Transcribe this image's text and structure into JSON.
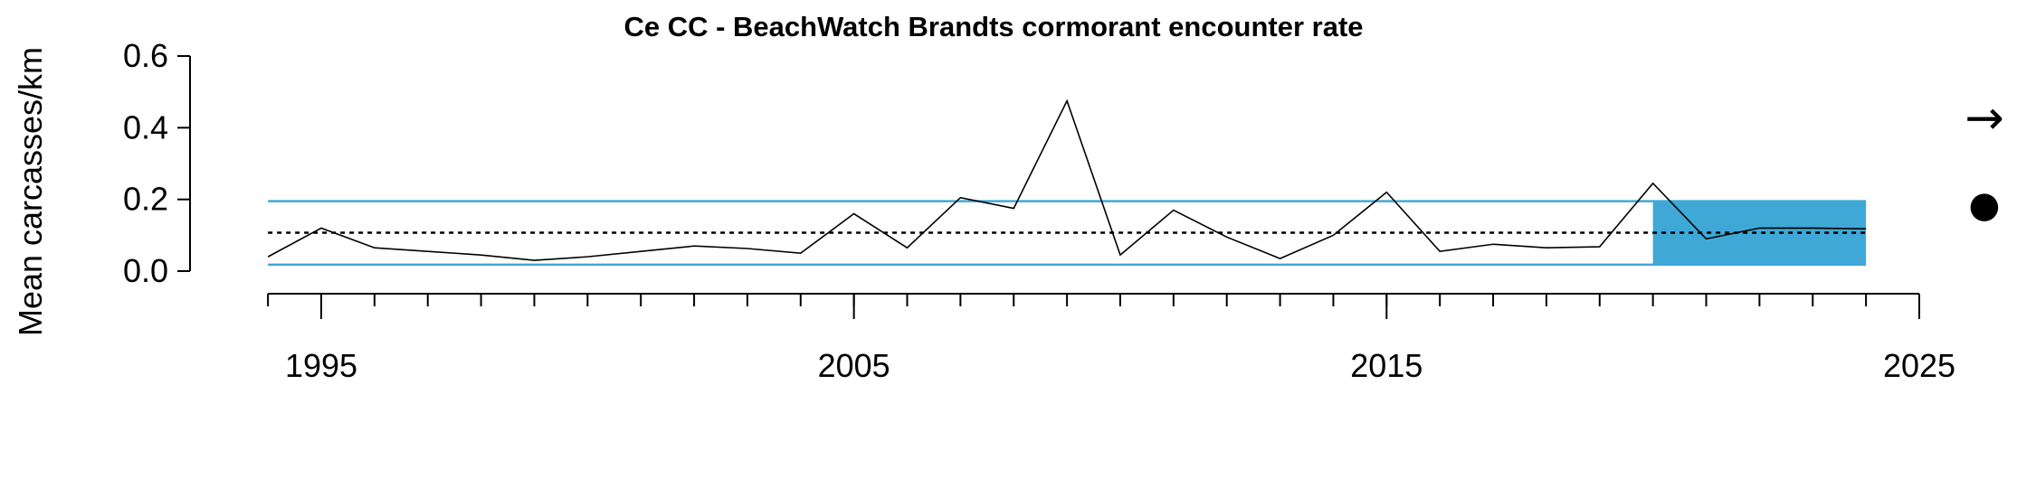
{
  "chart_data": {
    "type": "line",
    "title": "Ce CC - BeachWatch Brandts cormorant encounter rate",
    "ylabel": "Mean carcasses/km",
    "xlabel": "",
    "xlim": [
      1993.5,
      2025
    ],
    "ylim": [
      0,
      0.6
    ],
    "x_ticks": [
      1995,
      2005,
      2015,
      2025
    ],
    "x_tick_labels": [
      "1995",
      "2005",
      "2015",
      "2025"
    ],
    "x_minor_ticks": [
      1994,
      1995,
      1996,
      1997,
      1998,
      1999,
      2000,
      2001,
      2002,
      2003,
      2004,
      2005,
      2006,
      2007,
      2008,
      2009,
      2010,
      2011,
      2012,
      2013,
      2014,
      2015,
      2016,
      2017,
      2018,
      2019,
      2020,
      2021,
      2022,
      2023,
      2024,
      2025
    ],
    "y_ticks": [
      0.0,
      0.2,
      0.4,
      0.6
    ],
    "y_tick_labels": [
      "0.0",
      "0.2",
      "0.4",
      "0.6"
    ],
    "grid": false,
    "series": [
      {
        "x": [
          1994,
          1995,
          1996,
          1997,
          1998,
          1999,
          2000,
          2001,
          2002,
          2003,
          2004,
          2005,
          2006,
          2007,
          2008,
          2009,
          2010,
          2011,
          2012,
          2013,
          2014,
          2015,
          2016,
          2017,
          2018,
          2019,
          2020,
          2021,
          2022,
          2023,
          2024
        ],
        "values": [
          0.04,
          0.12,
          0.065,
          0.055,
          0.045,
          0.03,
          0.04,
          0.055,
          0.07,
          0.063,
          0.05,
          0.16,
          0.065,
          0.205,
          0.175,
          0.475,
          0.045,
          0.17,
          0.095,
          0.035,
          0.1,
          0.22,
          0.055,
          0.075,
          0.065,
          0.068,
          0.245,
          0.09,
          0.12,
          0.12,
          0.118
        ],
        "color": "#000000"
      }
    ],
    "reference_lines": {
      "mean": 0.107,
      "upper_sd": 0.195,
      "lower_sd": 0.018,
      "mean_style": "dotted",
      "sd_color": "#3fa8d6"
    },
    "highlight_region": {
      "x_start": 2020,
      "x_end": 2024,
      "y_start": 0.018,
      "y_end": 0.195,
      "color": "#3fa8d6"
    },
    "trend_indicator": {
      "symbol": "→",
      "meaning": "stable trend"
    },
    "mean_indicator": {
      "symbol": "●",
      "meaning": "recent mean within 1 SD"
    }
  }
}
